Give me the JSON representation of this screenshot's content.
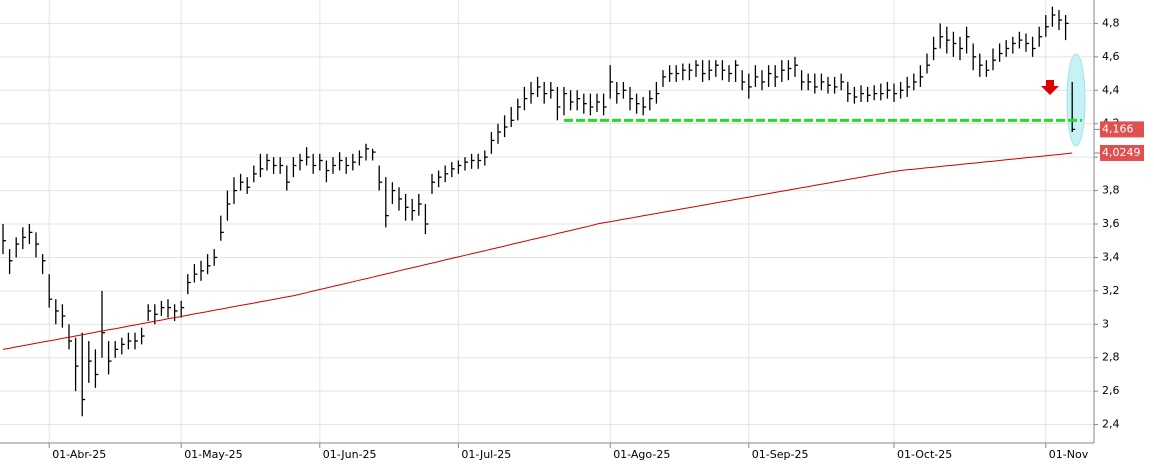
{
  "chart_data": {
    "type": "ohlc",
    "categories": [
      null,
      null,
      null,
      null,
      null,
      null,
      null,
      "01-Abr-25",
      null,
      null,
      null,
      null,
      null,
      null,
      null,
      null,
      null,
      null,
      null,
      null,
      null,
      null,
      null,
      null,
      null,
      null,
      null,
      "01-May-25",
      null,
      null,
      null,
      null,
      null,
      null,
      null,
      null,
      null,
      null,
      null,
      null,
      null,
      null,
      null,
      null,
      null,
      null,
      null,
      null,
      "01-Jun-25",
      null,
      null,
      null,
      null,
      null,
      null,
      null,
      null,
      null,
      null,
      null,
      null,
      null,
      null,
      null,
      null,
      null,
      null,
      null,
      null,
      "01-Jul-25",
      null,
      null,
      null,
      null,
      null,
      null,
      null,
      null,
      null,
      null,
      null,
      null,
      null,
      null,
      null,
      null,
      null,
      null,
      null,
      null,
      null,
      null,
      "01-Ago-25",
      null,
      null,
      null,
      null,
      null,
      null,
      null,
      null,
      null,
      null,
      null,
      null,
      null,
      null,
      null,
      null,
      null,
      null,
      null,
      null,
      "01-Sep-25",
      null,
      null,
      null,
      null,
      null,
      null,
      null,
      null,
      null,
      null,
      null,
      null,
      null,
      null,
      null,
      null,
      null,
      null,
      null,
      null,
      null,
      "01-Oct-25",
      null,
      null,
      null,
      null,
      null,
      null,
      null,
      null,
      null,
      null,
      null,
      null,
      null,
      null,
      null,
      null,
      null,
      null,
      null,
      null,
      null,
      null,
      "01-Nov",
      null,
      null,
      null,
      null
    ],
    "high": [
      3.6,
      3.45,
      3.52,
      3.58,
      3.6,
      3.55,
      3.42,
      3.3,
      3.15,
      3.12,
      3.0,
      2.92,
      2.95,
      2.9,
      2.85,
      3.2,
      2.9,
      2.9,
      2.92,
      2.95,
      2.95,
      2.98,
      3.12,
      3.12,
      3.14,
      3.15,
      3.12,
      3.14,
      3.3,
      3.36,
      3.38,
      3.42,
      3.45,
      3.65,
      3.8,
      3.88,
      3.9,
      3.88,
      3.95,
      4.02,
      4.02,
      4.0,
      4.0,
      3.95,
      4.0,
      4.02,
      4.06,
      4.02,
      4.02,
      3.98,
      4.0,
      4.03,
      4.0,
      4.02,
      4.04,
      4.08,
      4.05,
      3.95,
      3.88,
      3.85,
      3.82,
      3.78,
      3.75,
      3.78,
      3.72,
      3.9,
      3.92,
      3.95,
      3.97,
      3.98,
      4.0,
      4.02,
      4.02,
      4.04,
      4.15,
      4.2,
      4.25,
      4.3,
      4.35,
      4.42,
      4.45,
      4.48,
      4.45,
      4.45,
      4.42,
      4.42,
      4.4,
      4.4,
      4.38,
      4.38,
      4.38,
      4.38,
      4.55,
      4.45,
      4.45,
      4.42,
      4.38,
      4.36,
      4.4,
      4.45,
      4.52,
      4.55,
      4.55,
      4.56,
      4.56,
      4.58,
      4.58,
      4.58,
      4.58,
      4.58,
      4.55,
      4.58,
      4.52,
      4.5,
      4.55,
      4.52,
      4.55,
      4.55,
      4.58,
      4.58,
      4.6,
      4.52,
      4.5,
      4.5,
      4.5,
      4.48,
      4.48,
      4.5,
      4.45,
      4.42,
      4.43,
      4.42,
      4.43,
      4.44,
      4.45,
      4.44,
      4.45,
      4.48,
      4.5,
      4.55,
      4.62,
      4.72,
      4.8,
      4.78,
      4.75,
      4.72,
      4.78,
      4.68,
      4.62,
      4.58,
      4.65,
      4.68,
      4.7,
      4.72,
      4.75,
      4.74,
      4.72,
      4.78,
      4.85,
      4.9,
      4.88,
      4.85,
      4.45
    ],
    "low": [
      3.42,
      3.3,
      3.4,
      3.45,
      3.48,
      3.4,
      3.3,
      3.1,
      3.0,
      2.98,
      2.85,
      2.6,
      2.45,
      2.65,
      2.62,
      2.8,
      2.7,
      2.8,
      2.82,
      2.85,
      2.85,
      2.88,
      3.02,
      3.0,
      3.05,
      3.04,
      3.02,
      3.04,
      3.18,
      3.25,
      3.26,
      3.3,
      3.35,
      3.5,
      3.62,
      3.72,
      3.8,
      3.78,
      3.85,
      3.88,
      3.92,
      3.9,
      3.9,
      3.8,
      3.88,
      3.92,
      3.95,
      3.9,
      3.92,
      3.85,
      3.9,
      3.92,
      3.9,
      3.92,
      3.95,
      3.98,
      3.98,
      3.8,
      3.58,
      3.72,
      3.68,
      3.62,
      3.62,
      3.65,
      3.54,
      3.78,
      3.82,
      3.85,
      3.88,
      3.9,
      3.92,
      3.93,
      3.93,
      3.95,
      4.02,
      4.08,
      4.12,
      4.18,
      4.22,
      4.28,
      4.32,
      4.36,
      4.32,
      4.35,
      4.22,
      4.25,
      4.28,
      4.28,
      4.26,
      4.25,
      4.27,
      4.25,
      4.35,
      4.32,
      4.35,
      4.28,
      4.26,
      4.25,
      4.28,
      4.32,
      4.42,
      4.45,
      4.45,
      4.46,
      4.46,
      4.48,
      4.45,
      4.46,
      4.48,
      4.46,
      4.45,
      4.45,
      4.4,
      4.35,
      4.42,
      4.4,
      4.42,
      4.42,
      4.45,
      4.46,
      4.48,
      4.4,
      4.4,
      4.38,
      4.4,
      4.38,
      4.38,
      4.4,
      4.33,
      4.32,
      4.33,
      4.33,
      4.34,
      4.34,
      4.35,
      4.33,
      4.35,
      4.36,
      4.4,
      4.42,
      4.5,
      4.58,
      4.65,
      4.62,
      4.6,
      4.58,
      4.62,
      4.52,
      4.48,
      4.48,
      4.52,
      4.57,
      4.6,
      4.62,
      4.65,
      4.63,
      4.6,
      4.66,
      4.72,
      4.78,
      4.76,
      4.7,
      4.15
    ],
    "close": [
      3.5,
      3.38,
      3.48,
      3.52,
      3.55,
      3.48,
      3.38,
      3.15,
      3.08,
      3.05,
      2.9,
      2.75,
      2.55,
      2.78,
      2.7,
      2.95,
      2.78,
      2.85,
      2.88,
      2.9,
      2.9,
      2.93,
      3.08,
      3.06,
      3.1,
      3.1,
      3.08,
      3.1,
      3.25,
      3.3,
      3.32,
      3.35,
      3.4,
      3.55,
      3.72,
      3.8,
      3.85,
      3.82,
      3.9,
      3.93,
      3.98,
      3.95,
      3.95,
      3.85,
      3.95,
      3.98,
      4.0,
      3.95,
      3.98,
      3.92,
      3.95,
      3.98,
      3.95,
      3.97,
      4.0,
      4.05,
      4.03,
      3.85,
      3.65,
      3.8,
      3.75,
      3.7,
      3.68,
      3.72,
      3.6,
      3.85,
      3.88,
      3.9,
      3.93,
      3.95,
      3.97,
      3.98,
      3.98,
      4.0,
      4.1,
      4.15,
      4.18,
      4.22,
      4.3,
      4.35,
      4.38,
      4.42,
      4.38,
      4.4,
      4.3,
      4.38,
      4.33,
      4.35,
      4.32,
      4.3,
      4.33,
      4.3,
      4.45,
      4.38,
      4.4,
      4.35,
      4.32,
      4.3,
      4.35,
      4.38,
      4.48,
      4.5,
      4.5,
      4.52,
      4.52,
      4.55,
      4.5,
      4.52,
      4.55,
      4.52,
      4.5,
      4.55,
      4.45,
      4.42,
      4.48,
      4.45,
      4.5,
      4.48,
      4.52,
      4.53,
      4.55,
      4.45,
      4.45,
      4.42,
      4.45,
      4.43,
      4.42,
      4.45,
      4.38,
      4.36,
      4.38,
      4.37,
      4.38,
      4.38,
      4.4,
      4.38,
      4.4,
      4.42,
      4.45,
      4.48,
      4.55,
      4.65,
      4.72,
      4.7,
      4.68,
      4.65,
      4.72,
      4.6,
      4.55,
      4.52,
      4.58,
      4.62,
      4.65,
      4.68,
      4.7,
      4.68,
      4.65,
      4.72,
      4.78,
      4.85,
      4.82,
      4.8,
      4.166
    ],
    "close_last_label": "4,166",
    "ma": [
      2.85,
      2.857,
      2.865,
      2.872,
      2.879,
      2.887,
      2.894,
      2.901,
      2.908,
      2.916,
      2.923,
      2.93,
      2.938,
      2.945,
      2.952,
      2.96,
      2.967,
      2.974,
      2.981,
      2.989,
      2.996,
      3.003,
      3.011,
      3.018,
      3.025,
      3.033,
      3.04,
      3.047,
      3.054,
      3.062,
      3.069,
      3.076,
      3.084,
      3.091,
      3.098,
      3.106,
      3.113,
      3.12,
      3.127,
      3.135,
      3.142,
      3.149,
      3.157,
      3.164,
      3.171,
      3.18,
      3.189,
      3.199,
      3.208,
      3.217,
      3.227,
      3.236,
      3.245,
      3.254,
      3.264,
      3.273,
      3.282,
      3.292,
      3.301,
      3.31,
      3.32,
      3.329,
      3.338,
      3.347,
      3.357,
      3.366,
      3.375,
      3.385,
      3.394,
      3.403,
      3.413,
      3.422,
      3.431,
      3.44,
      3.45,
      3.459,
      3.468,
      3.478,
      3.487,
      3.496,
      3.506,
      3.515,
      3.524,
      3.533,
      3.543,
      3.552,
      3.561,
      3.571,
      3.58,
      3.589,
      3.6,
      3.607,
      3.614,
      3.621,
      3.628,
      3.635,
      3.642,
      3.649,
      3.656,
      3.663,
      3.67,
      3.677,
      3.684,
      3.691,
      3.698,
      3.705,
      3.712,
      3.719,
      3.726,
      3.733,
      3.74,
      3.747,
      3.754,
      3.761,
      3.768,
      3.775,
      3.782,
      3.789,
      3.796,
      3.803,
      3.81,
      3.817,
      3.824,
      3.831,
      3.838,
      3.845,
      3.852,
      3.859,
      3.866,
      3.873,
      3.88,
      3.887,
      3.894,
      3.901,
      3.908,
      3.914,
      3.92,
      3.924,
      3.928,
      3.932,
      3.936,
      3.94,
      3.944,
      3.948,
      3.952,
      3.956,
      3.96,
      3.964,
      3.968,
      3.972,
      3.976,
      3.98,
      3.984,
      3.988,
      3.992,
      3.996,
      4.0,
      4.004,
      4.008,
      4.012,
      4.016,
      4.02,
      4.0249
    ],
    "ma_last_label": "4,0249",
    "color": "#000000",
    "ma_color": "#cc0000",
    "label_color": "#e05050",
    "level": {
      "value": 4.22,
      "color": "#22dd22"
    },
    "ylim": [
      2.29,
      4.94
    ],
    "yticks": [
      {
        "value": 2.4,
        "label": "2,4"
      },
      {
        "value": 2.6,
        "label": "2,6"
      },
      {
        "value": 2.8,
        "label": "2,8"
      },
      3,
      {
        "value": 3.2,
        "label": "3,2"
      },
      {
        "value": 3.4,
        "label": "3,4"
      },
      {
        "value": 3.6,
        "label": "3,6"
      },
      {
        "value": 3.8,
        "label": "3,8"
      },
      {
        "value": 4,
        "label": "4"
      },
      {
        "value": 4.2,
        "label": "4,2"
      },
      {
        "value": 4.4,
        "label": "4,4"
      },
      {
        "value": 4.6,
        "label": "4,6"
      },
      {
        "value": 4.8,
        "label": "4,8"
      }
    ],
    "grid": true
  }
}
